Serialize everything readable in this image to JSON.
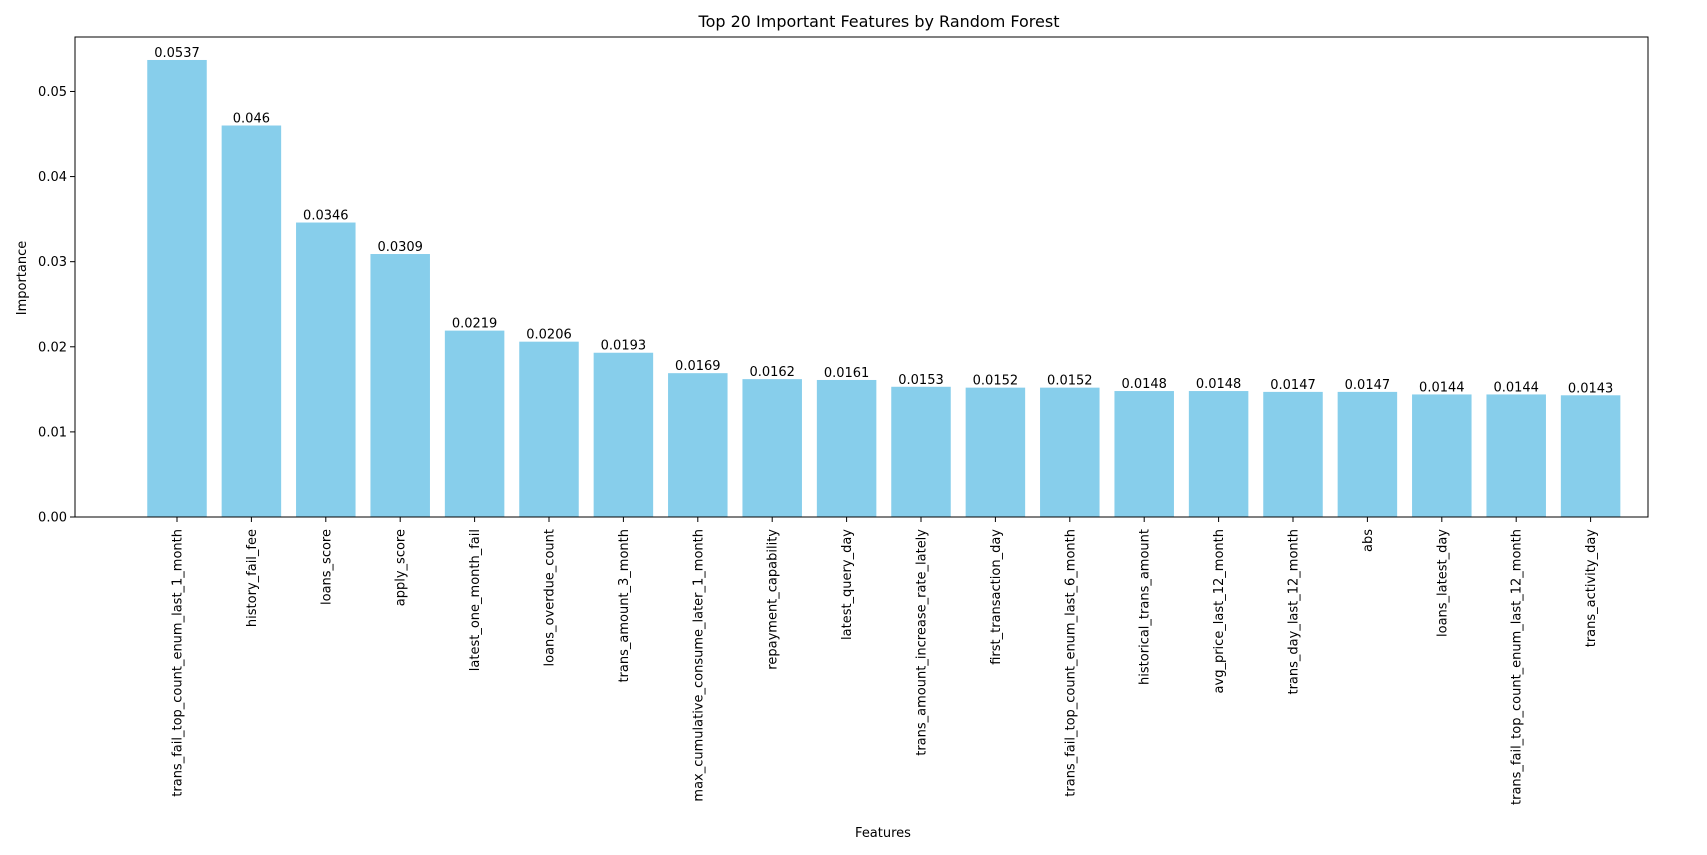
{
  "chart_data": {
    "type": "bar",
    "title": "Top 20 Important Features by Random Forest",
    "xlabel": "Features",
    "ylabel": "Importance",
    "ylim": [
      0,
      0.0564
    ],
    "yticks": [
      "0.00",
      "0.01",
      "0.02",
      "0.03",
      "0.04",
      "0.05"
    ],
    "ytick_values": [
      0,
      0.01,
      0.02,
      0.03,
      0.04,
      0.05
    ],
    "grid": false,
    "bar_color": "#87CEEB",
    "categories": [
      "trans_fail_top_count_enum_last_1_month",
      "history_fail_fee",
      "loans_score",
      "apply_score",
      "latest_one_month_fail",
      "loans_overdue_count",
      "trans_amount_3_month",
      "max_cumulative_consume_later_1_month",
      "repayment_capability",
      "latest_query_day",
      "trans_amount_increase_rate_lately",
      "first_transaction_day",
      "trans_fail_top_count_enum_last_6_month",
      "historical_trans_amount",
      "avg_price_last_12_month",
      "trans_day_last_12_month",
      "abs",
      "loans_latest_day",
      "trans_fail_top_count_enum_last_12_month",
      "trans_activity_day"
    ],
    "values": [
      0.0537,
      0.046,
      0.0346,
      0.0309,
      0.0219,
      0.0206,
      0.0193,
      0.0169,
      0.0162,
      0.0161,
      0.0153,
      0.0152,
      0.0152,
      0.0148,
      0.0148,
      0.0147,
      0.0147,
      0.0144,
      0.0144,
      0.0143
    ],
    "value_labels": [
      "0.0537",
      "0.046",
      "0.0346",
      "0.0309",
      "0.0219",
      "0.0206",
      "0.0193",
      "0.0169",
      "0.0162",
      "0.0161",
      "0.0153",
      "0.0152",
      "0.0152",
      "0.0148",
      "0.0148",
      "0.0147",
      "0.0147",
      "0.0144",
      "0.0144",
      "0.0143"
    ]
  }
}
